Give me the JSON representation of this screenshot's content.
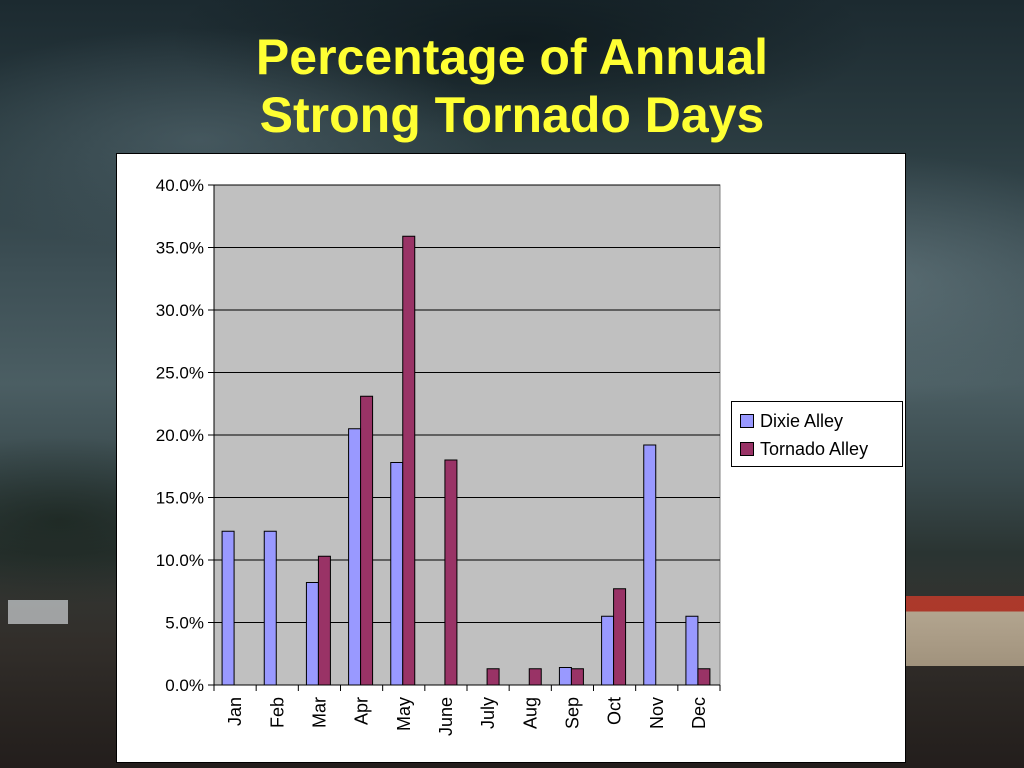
{
  "title": "Percentage of Annual\nStrong Tornado Days",
  "colors": {
    "title": "#ffff33",
    "plot_bg": "#c0c0c0",
    "series_1": "#9999ff",
    "series_2": "#993366"
  },
  "chart_data": {
    "type": "bar",
    "title": "Percentage of Annual Strong Tornado Days",
    "categories": [
      "Jan",
      "Feb",
      "Mar",
      "Apr",
      "May",
      "June",
      "July",
      "Aug",
      "Sep",
      "Oct",
      "Nov",
      "Dec"
    ],
    "series": [
      {
        "name": "Dixie Alley",
        "color": "#9999ff",
        "values": [
          12.3,
          12.3,
          8.2,
          20.5,
          17.8,
          0,
          0,
          0,
          1.4,
          5.5,
          19.2,
          5.5
        ]
      },
      {
        "name": "Tornado Alley",
        "color": "#993366",
        "values": [
          0,
          0,
          10.3,
          23.1,
          35.9,
          18.0,
          1.3,
          1.3,
          1.3,
          7.7,
          0,
          1.3
        ]
      }
    ],
    "ylim": [
      0,
      40
    ],
    "yticks": [
      "0.0%",
      "5.0%",
      "10.0%",
      "15.0%",
      "20.0%",
      "25.0%",
      "30.0%",
      "35.0%",
      "40.0%"
    ],
    "grid": true,
    "legend_position": "right"
  }
}
